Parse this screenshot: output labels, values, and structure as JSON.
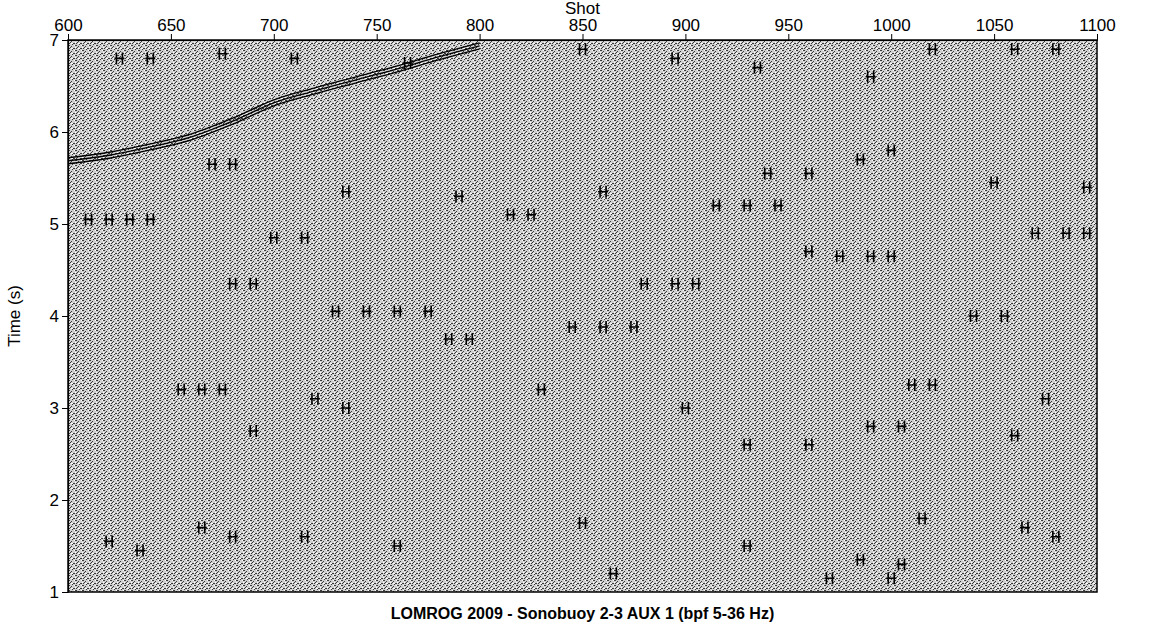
{
  "chart_data": {
    "type": "scatter",
    "title": "LOMROG 2009 - Sonobuoy 2-3 AUX 1 (bpf 5-36 Hz)",
    "x_label": "Shot",
    "y_label": "Time (s)",
    "xlim": [
      600,
      1100
    ],
    "xticks": [
      600,
      650,
      700,
      750,
      800,
      850,
      900,
      950,
      1000,
      1050,
      1100
    ],
    "ylim": [
      1,
      7
    ],
    "yticks": [
      1,
      2,
      3,
      4,
      5,
      6,
      7
    ],
    "grid": false,
    "series": [
      {
        "type": "scatter",
        "marker": "tick",
        "color": "#000000",
        "x": [
          610,
          620,
          630,
          640,
          655,
          665,
          675,
          680,
          690,
          700,
          715,
          730,
          745,
          760,
          775,
          785,
          795,
          815,
          825,
          845,
          860,
          875,
          880,
          895,
          905,
          915,
          930,
          945,
          960,
          975,
          990,
          1000,
          1040,
          1055,
          1010,
          1020,
          1070,
          1085,
          1095,
          625,
          640,
          675,
          710,
          765,
          850,
          895,
          935,
          990,
          1020,
          1060,
          1080,
          670,
          680,
          735,
          790,
          860,
          940,
          960,
          985,
          1000,
          1050,
          1095,
          720,
          735,
          690,
          830,
          900,
          930,
          960,
          990,
          1005,
          1075,
          1060,
          620,
          635,
          665,
          680,
          715,
          760,
          850,
          865,
          930,
          985,
          1005,
          1015,
          1065,
          1080,
          1000,
          970
        ],
        "values": [
          5.05,
          5.05,
          5.05,
          5.05,
          3.2,
          3.2,
          3.2,
          4.35,
          4.35,
          4.85,
          4.85,
          4.05,
          4.05,
          4.05,
          4.05,
          3.75,
          3.75,
          5.1,
          5.1,
          3.88,
          3.88,
          3.88,
          4.35,
          4.35,
          4.35,
          5.2,
          5.2,
          5.2,
          4.7,
          4.65,
          4.65,
          4.65,
          4.0,
          4.0,
          3.25,
          3.25,
          4.9,
          4.9,
          4.9,
          6.8,
          6.8,
          6.85,
          6.8,
          6.75,
          6.9,
          6.8,
          6.7,
          6.6,
          6.9,
          6.9,
          6.9,
          5.65,
          5.65,
          5.35,
          5.3,
          5.35,
          5.55,
          5.55,
          5.7,
          5.8,
          5.45,
          5.4,
          3.1,
          3.0,
          2.75,
          3.2,
          3.0,
          2.6,
          2.6,
          2.8,
          2.8,
          3.1,
          2.7,
          1.55,
          1.45,
          1.7,
          1.6,
          1.6,
          1.5,
          1.75,
          1.2,
          1.5,
          1.35,
          1.3,
          1.8,
          1.7,
          1.6,
          1.15,
          1.15
        ]
      },
      {
        "type": "line",
        "line_style": "solid",
        "color": "#000000",
        "x": [
          600,
          620,
          640,
          660,
          680,
          700,
          720,
          740,
          760,
          780,
          800
        ],
        "values": [
          5.72,
          5.78,
          5.87,
          5.98,
          6.15,
          6.35,
          6.48,
          6.6,
          6.72,
          6.85,
          6.97
        ]
      }
    ]
  }
}
